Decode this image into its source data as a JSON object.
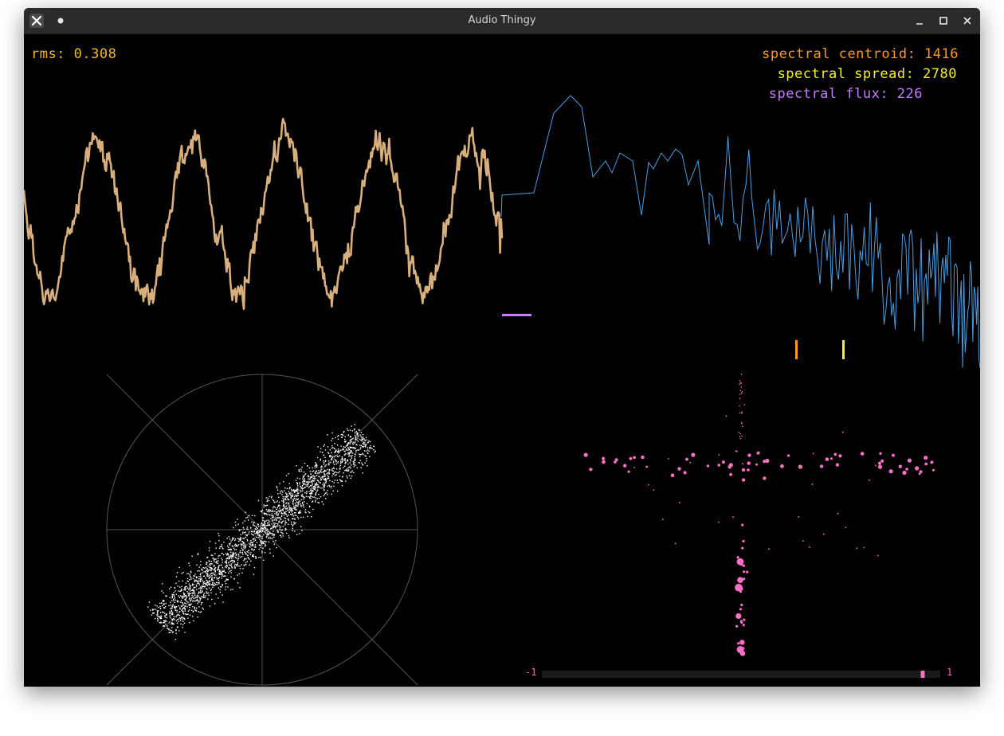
{
  "window": {
    "title": "Audio Thingy",
    "minimize_icon": "minimize-icon",
    "maximize_icon": "maximize-icon",
    "close_icon": "close-icon",
    "app_icon": "x-logo-icon",
    "menu_icon": "dot-icon"
  },
  "hud": {
    "rms_label": "rms: 0.308",
    "centroid_label": "spectral centroid: 1416",
    "spread_label": "spectral spread: 2780",
    "flux_label": "spectral flux: 226"
  },
  "colors": {
    "background": "#000000",
    "waveform": "#d9b07c",
    "spectrum": "#4a9ee0",
    "rms": "#f5b820",
    "centroid": "#ff9a1e",
    "spread": "#f5f028",
    "flux": "#c77dff",
    "goniometer": "#ffffff",
    "grid": "#555555",
    "particles": "#ff6fc8"
  },
  "scale": {
    "min_label": "-1",
    "max_label": "1",
    "value": 0.91
  }
}
